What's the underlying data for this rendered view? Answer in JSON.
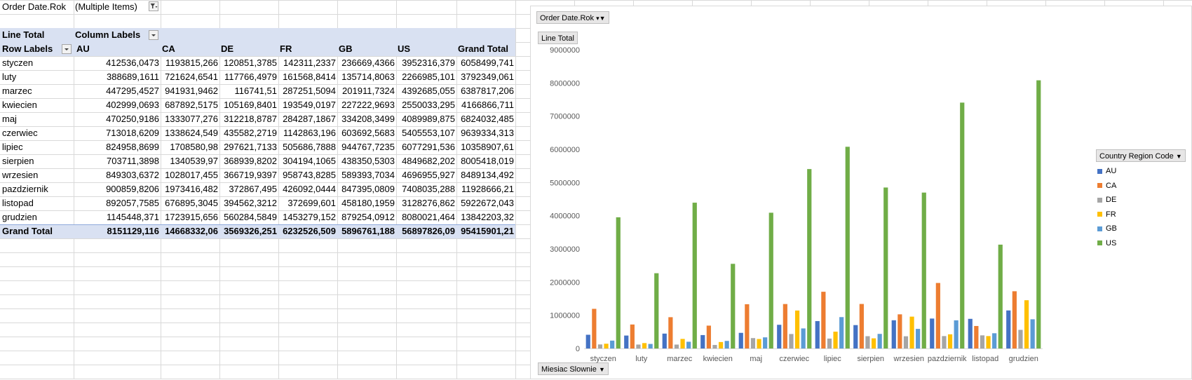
{
  "filter": {
    "field": "Order Date.Rok",
    "value": "(Multiple Items)"
  },
  "pivot": {
    "measure": "Line Total",
    "column_labels": "Column Labels",
    "row_labels": "Row Labels",
    "columns": [
      "AU",
      "CA",
      "DE",
      "FR",
      "GB",
      "US",
      "Grand Total"
    ],
    "rows": [
      {
        "label": "styczen",
        "values": [
          "412536,0473",
          "1193815,266",
          "120851,3785",
          "142311,2337",
          "236669,4366",
          "3952316,379",
          "6058499,741"
        ]
      },
      {
        "label": "luty",
        "values": [
          "388689,1611",
          "721624,6541",
          "117766,4979",
          "161568,8414",
          "135714,8063",
          "2266985,101",
          "3792349,061"
        ]
      },
      {
        "label": "marzec",
        "values": [
          "447295,4527",
          "941931,9462",
          "116741,51",
          "287251,5094",
          "201911,7324",
          "4392685,055",
          "6387817,206"
        ]
      },
      {
        "label": "kwiecien",
        "values": [
          "402999,0693",
          "687892,5175",
          "105169,8401",
          "193549,0197",
          "227222,9693",
          "2550033,295",
          "4166866,711"
        ]
      },
      {
        "label": "maj",
        "values": [
          "470250,9186",
          "1333077,276",
          "312218,8787",
          "284287,1867",
          "334208,3499",
          "4089989,875",
          "6824032,485"
        ]
      },
      {
        "label": "czerwiec",
        "values": [
          "713018,6209",
          "1338624,549",
          "435582,2719",
          "1142863,196",
          "603692,5683",
          "5405553,107",
          "9639334,313"
        ]
      },
      {
        "label": "lipiec",
        "values": [
          "824958,8699",
          "1708580,98",
          "297621,7133",
          "505686,7888",
          "944767,7235",
          "6077291,536",
          "10358907,61"
        ]
      },
      {
        "label": "sierpien",
        "values": [
          "703711,3898",
          "1340539,97",
          "368939,8202",
          "304194,1065",
          "438350,5303",
          "4849682,202",
          "8005418,019"
        ]
      },
      {
        "label": "wrzesien",
        "values": [
          "849303,6372",
          "1028017,455",
          "366719,9397",
          "958743,8285",
          "589393,7034",
          "4696955,927",
          "8489134,492"
        ]
      },
      {
        "label": "pazdziernik",
        "values": [
          "900859,8206",
          "1973416,482",
          "372867,495",
          "426092,0444",
          "847395,0809",
          "7408035,288",
          "11928666,21"
        ]
      },
      {
        "label": "listopad",
        "values": [
          "892057,7585",
          "676895,3045",
          "394562,3212",
          "372699,601",
          "458180,1959",
          "3128276,862",
          "5922672,043"
        ]
      },
      {
        "label": "grudzien",
        "values": [
          "1145448,371",
          "1723915,656",
          "560284,5849",
          "1453279,152",
          "879254,0912",
          "8080021,464",
          "13842203,32"
        ]
      }
    ],
    "grand_total": {
      "label": "Grand Total",
      "values": [
        "8151129,116",
        "14668332,06",
        "3569326,251",
        "6232526,509",
        "5896761,188",
        "56897826,09",
        "95415901,21"
      ]
    }
  },
  "chart_buttons": {
    "filter": "Order Date.Rok",
    "value": "Line Total",
    "axis": "Miesiac Slownie",
    "legend": "Country Region Code"
  },
  "chart_data": {
    "type": "bar",
    "categories": [
      "styczen",
      "luty",
      "marzec",
      "kwiecien",
      "maj",
      "czerwiec",
      "lipiec",
      "sierpien",
      "wrzesien",
      "pazdziernik",
      "listopad",
      "grudzien"
    ],
    "series": [
      {
        "name": "AU",
        "color": "#4472c4",
        "values": [
          412536,
          388689,
          447295,
          402999,
          470251,
          713019,
          824959,
          703711,
          849304,
          900860,
          892058,
          1145448
        ]
      },
      {
        "name": "CA",
        "color": "#ed7d31",
        "values": [
          1193815,
          721625,
          941932,
          687893,
          1333077,
          1338625,
          1708581,
          1340540,
          1028017,
          1973416,
          676895,
          1723916
        ]
      },
      {
        "name": "DE",
        "color": "#a5a5a5",
        "values": [
          120851,
          117766,
          116742,
          105170,
          312219,
          435582,
          297622,
          368940,
          366720,
          372867,
          394562,
          560285
        ]
      },
      {
        "name": "FR",
        "color": "#ffc000",
        "values": [
          142311,
          161569,
          287252,
          193549,
          284287,
          1142863,
          505687,
          304194,
          958744,
          426092,
          372700,
          1453279
        ]
      },
      {
        "name": "GB",
        "color": "#5b9bd5",
        "values": [
          236669,
          135715,
          201912,
          227223,
          334208,
          603693,
          944768,
          438351,
          589394,
          847395,
          458180,
          879254
        ]
      },
      {
        "name": "US",
        "color": "#70ad47",
        "values": [
          3952316,
          2266985,
          4392685,
          2550033,
          4089990,
          5405553,
          6077292,
          4849682,
          4696956,
          7408035,
          3128277,
          8080021
        ]
      }
    ],
    "yticks": [
      "0",
      "1000000",
      "2000000",
      "3000000",
      "4000000",
      "5000000",
      "6000000",
      "7000000",
      "8000000",
      "9000000"
    ],
    "ylim": [
      0,
      9000000
    ],
    "grid": false,
    "legend": "right"
  }
}
